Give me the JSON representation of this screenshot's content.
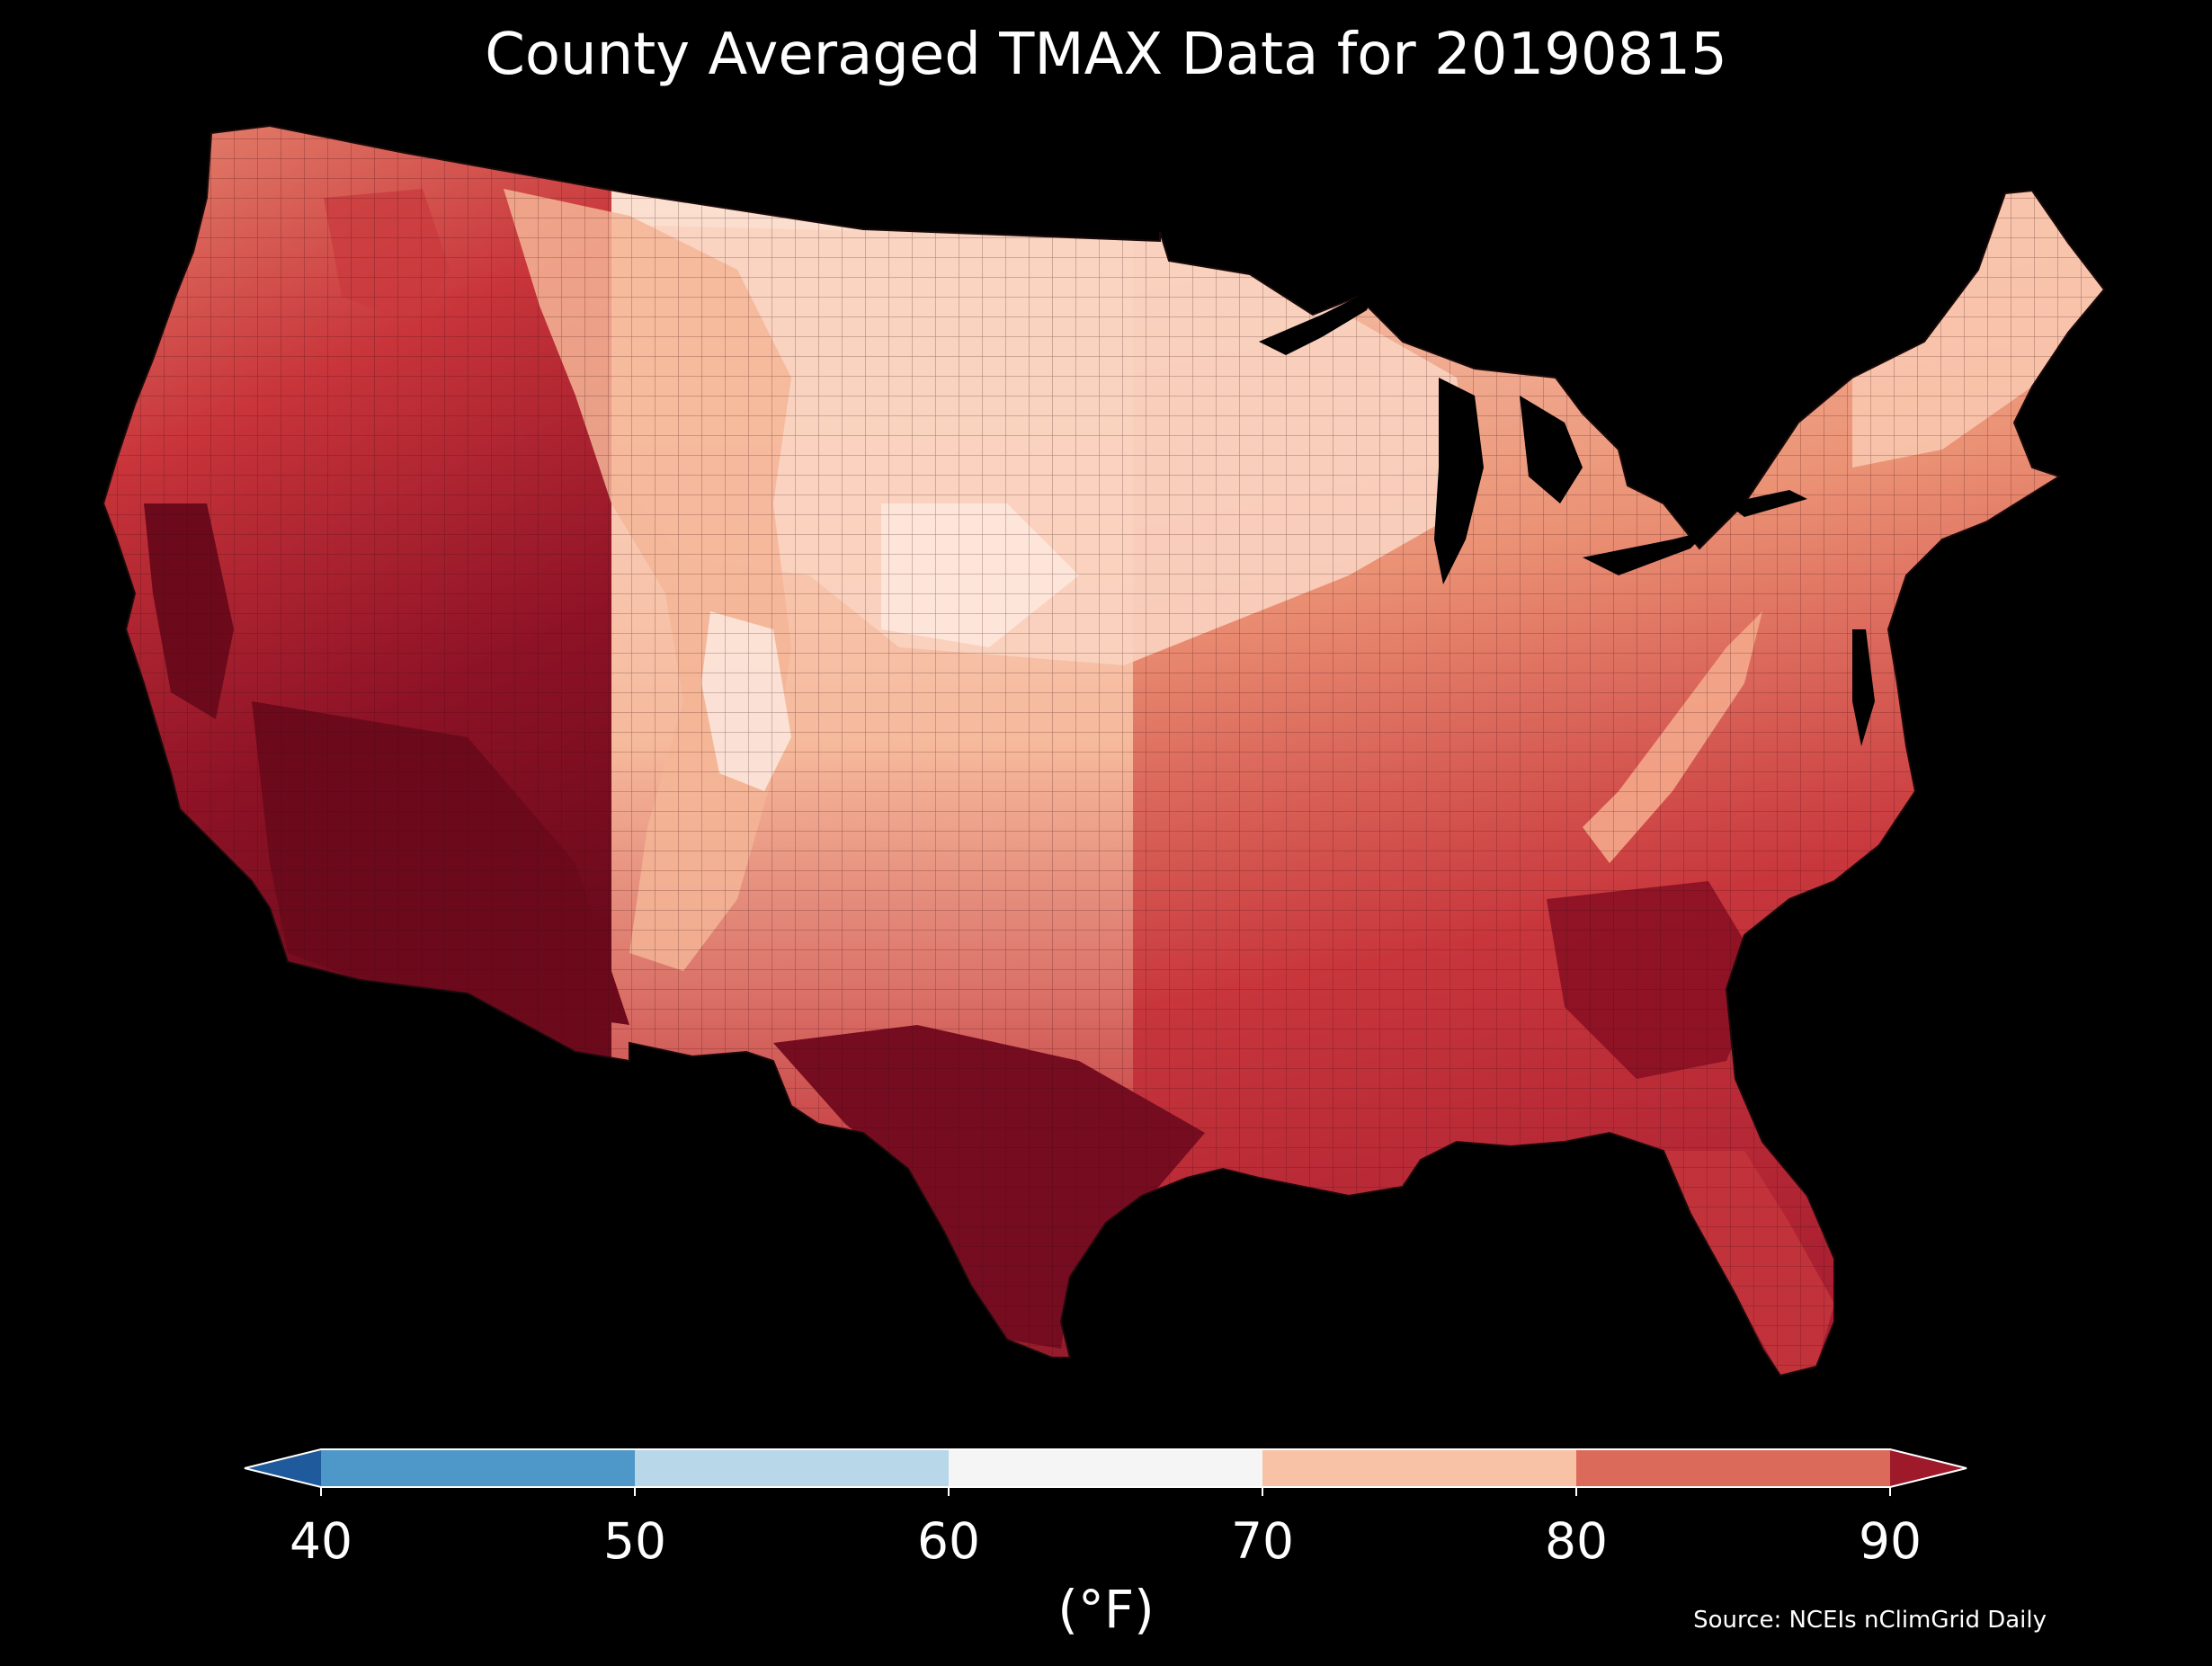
{
  "title": "County Averaged TMAX Data for 20190815",
  "source": "Source: NCEIs nClimGrid Daily",
  "map": {
    "region": "Contiguous United States",
    "level": "county",
    "variable": "TMAX",
    "date": "20190815",
    "background_color": "#000000",
    "land_outline_color": "#1a0a0a"
  },
  "colorbar": {
    "label": "(°F)",
    "ticks": [
      "40",
      "50",
      "60",
      "70",
      "80",
      "90"
    ],
    "tick_values": [
      40,
      50,
      60,
      70,
      80,
      90
    ],
    "under_color": "#1f5a9c",
    "over_color": "#9e1a2a",
    "bins": [
      {
        "from": 40,
        "to": 50,
        "color": "#4d98c8"
      },
      {
        "from": 50,
        "to": 60,
        "color": "#b8d8ea"
      },
      {
        "from": 60,
        "to": 70,
        "color": "#f5f5f5"
      },
      {
        "from": 70,
        "to": 80,
        "color": "#f7c2a6"
      },
      {
        "from": 80,
        "to": 90,
        "color": "#dc6a5a"
      }
    ]
  }
}
